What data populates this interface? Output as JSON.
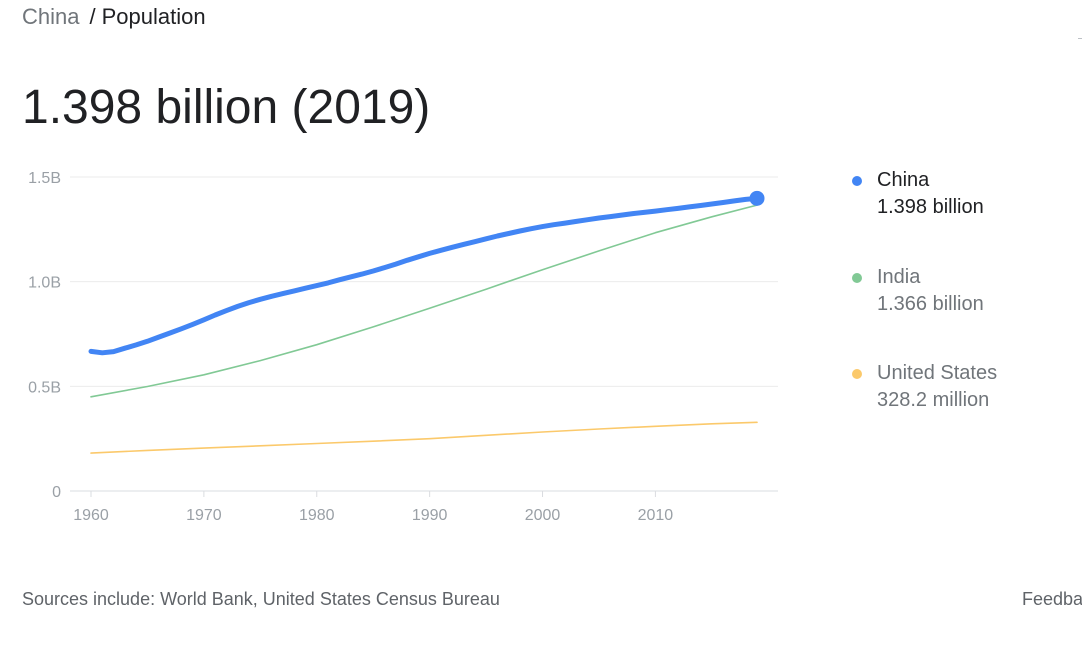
{
  "breadcrumb": {
    "parent": "China",
    "separator": "/",
    "current": "Population"
  },
  "headline": "1.398 billion (2019)",
  "chart_data": {
    "type": "line",
    "title": "",
    "xlabel": "",
    "ylabel": "",
    "xlim": [
      1960,
      2019
    ],
    "ylim": [
      0,
      1.5
    ],
    "grid": true,
    "legend_position": "right",
    "y_ticks": [
      {
        "value": 1.5,
        "label": "1.5B"
      },
      {
        "value": 1.0,
        "label": "1.0B"
      },
      {
        "value": 0.5,
        "label": "0.5B"
      },
      {
        "value": 0,
        "label": "0"
      }
    ],
    "x_ticks": [
      {
        "value": 1960,
        "label": "1960"
      },
      {
        "value": 1970,
        "label": "1970"
      },
      {
        "value": 1980,
        "label": "1980"
      },
      {
        "value": 1990,
        "label": "1990"
      },
      {
        "value": 2000,
        "label": "2000"
      },
      {
        "value": 2010,
        "label": "2010"
      }
    ],
    "series": [
      {
        "name": "China",
        "value_label": "1.398 billion",
        "color": "#4285f4",
        "highlighted": true,
        "points": [
          [
            1960,
            0.667
          ],
          [
            1961,
            0.66
          ],
          [
            1962,
            0.666
          ],
          [
            1963,
            0.682
          ],
          [
            1964,
            0.698
          ],
          [
            1965,
            0.715
          ],
          [
            1966,
            0.735
          ],
          [
            1967,
            0.755
          ],
          [
            1968,
            0.775
          ],
          [
            1969,
            0.796
          ],
          [
            1970,
            0.818
          ],
          [
            1971,
            0.841
          ],
          [
            1972,
            0.862
          ],
          [
            1973,
            0.882
          ],
          [
            1974,
            0.9
          ],
          [
            1975,
            0.916
          ],
          [
            1976,
            0.93
          ],
          [
            1977,
            0.943
          ],
          [
            1978,
            0.956
          ],
          [
            1979,
            0.969
          ],
          [
            1980,
            0.981
          ],
          [
            1981,
            0.994
          ],
          [
            1982,
            1.009
          ],
          [
            1983,
            1.023
          ],
          [
            1984,
            1.036
          ],
          [
            1985,
            1.051
          ],
          [
            1986,
            1.067
          ],
          [
            1987,
            1.084
          ],
          [
            1988,
            1.102
          ],
          [
            1989,
            1.119
          ],
          [
            1990,
            1.135
          ],
          [
            1991,
            1.15
          ],
          [
            1992,
            1.164
          ],
          [
            1993,
            1.178
          ],
          [
            1994,
            1.191
          ],
          [
            1995,
            1.205
          ],
          [
            1996,
            1.218
          ],
          [
            1997,
            1.23
          ],
          [
            1998,
            1.242
          ],
          [
            1999,
            1.253
          ],
          [
            2000,
            1.263
          ],
          [
            2001,
            1.272
          ],
          [
            2002,
            1.28
          ],
          [
            2003,
            1.288
          ],
          [
            2004,
            1.296
          ],
          [
            2005,
            1.304
          ],
          [
            2006,
            1.311
          ],
          [
            2007,
            1.318
          ],
          [
            2008,
            1.325
          ],
          [
            2009,
            1.331
          ],
          [
            2010,
            1.337
          ],
          [
            2011,
            1.344
          ],
          [
            2012,
            1.35
          ],
          [
            2013,
            1.357
          ],
          [
            2014,
            1.364
          ],
          [
            2015,
            1.371
          ],
          [
            2016,
            1.378
          ],
          [
            2017,
            1.386
          ],
          [
            2018,
            1.393
          ],
          [
            2019,
            1.398
          ]
        ]
      },
      {
        "name": "India",
        "value_label": "1.366 billion",
        "color": "#81c995",
        "highlighted": false,
        "points": [
          [
            1960,
            0.45
          ],
          [
            1965,
            0.499
          ],
          [
            1970,
            0.555
          ],
          [
            1975,
            0.623
          ],
          [
            1980,
            0.699
          ],
          [
            1985,
            0.784
          ],
          [
            1990,
            0.873
          ],
          [
            1995,
            0.964
          ],
          [
            2000,
            1.057
          ],
          [
            2005,
            1.147
          ],
          [
            2010,
            1.234
          ],
          [
            2015,
            1.31
          ],
          [
            2019,
            1.366
          ]
        ]
      },
      {
        "name": "United States",
        "value_label": "328.2 million",
        "color": "#fbc96b",
        "highlighted": false,
        "points": [
          [
            1960,
            0.181
          ],
          [
            1965,
            0.194
          ],
          [
            1970,
            0.205
          ],
          [
            1975,
            0.216
          ],
          [
            1980,
            0.227
          ],
          [
            1985,
            0.238
          ],
          [
            1990,
            0.25
          ],
          [
            1995,
            0.266
          ],
          [
            2000,
            0.282
          ],
          [
            2005,
            0.296
          ],
          [
            2010,
            0.309
          ],
          [
            2015,
            0.321
          ],
          [
            2019,
            0.328
          ]
        ]
      }
    ]
  },
  "footer": {
    "sources": "Sources include: World Bank, United States Census Bureau",
    "feedback": "Feedba"
  }
}
